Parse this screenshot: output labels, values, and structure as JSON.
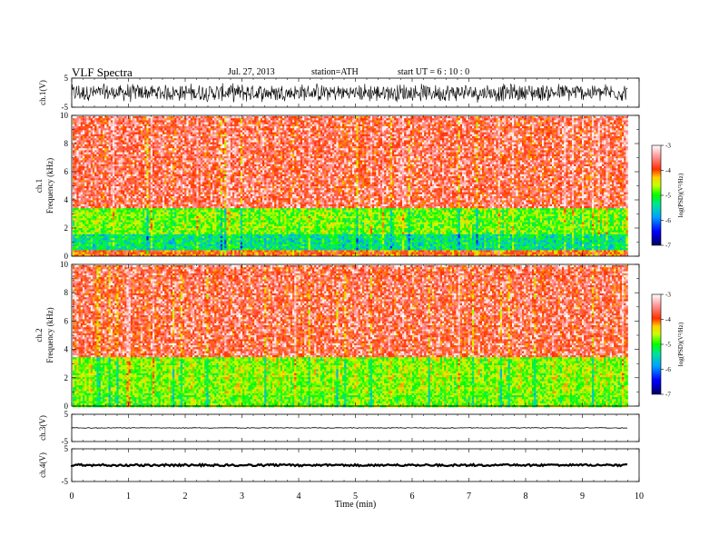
{
  "header": {
    "title": "VLF  Spectra",
    "date": "Jul.  27, 2013",
    "station": "station=ATH",
    "start": "start  UT  =   6  : 10 : 0"
  },
  "chart_data": [
    {
      "type": "line",
      "panel": "ch1-waveform",
      "ylabel": "ch.1(V)",
      "ylim": [
        -5,
        5
      ],
      "yticks": [
        "5",
        "-5"
      ],
      "xlim": [
        0,
        10
      ],
      "amplitude_range": [
        -3.5,
        3.5
      ],
      "data_end_min": 9.8
    },
    {
      "type": "heatmap",
      "panel": "ch1-spectrogram",
      "ylabel": [
        "ch.1",
        "Frequency  (kHz)"
      ],
      "ylim": [
        0,
        10
      ],
      "yticks": [
        "0",
        "2",
        "4",
        "6",
        "8",
        "10"
      ],
      "xlim": [
        0,
        10
      ],
      "data_end_min": 9.8,
      "colorbar": {
        "label": "log(PSD)(V²/Hz)",
        "range": [
          -7,
          -3
        ],
        "ticks": [
          "-3",
          "-4",
          "-5",
          "-6",
          "-7"
        ]
      },
      "bands": [
        {
          "freq_khz": [
            0,
            0.5
          ],
          "logpsd": -4.2
        },
        {
          "freq_khz": [
            0.5,
            1.7
          ],
          "logpsd": -5.5
        },
        {
          "freq_khz": [
            1.7,
            3.5
          ],
          "logpsd": -5.0
        },
        {
          "freq_khz": [
            3.5,
            10
          ],
          "logpsd": -3.9
        }
      ]
    },
    {
      "type": "heatmap",
      "panel": "ch2-spectrogram",
      "ylabel": [
        "ch.2",
        "Frequency  (kHz)"
      ],
      "ylim": [
        0,
        10
      ],
      "yticks": [
        "0",
        "2",
        "4",
        "6",
        "8",
        "10"
      ],
      "xlim": [
        0,
        10
      ],
      "data_end_min": 9.8,
      "colorbar": {
        "label": "log(PSD)(V²/Hz)",
        "range": [
          -7,
          -3
        ],
        "ticks": [
          "-3",
          "-4",
          "-5",
          "-6",
          "-7"
        ]
      },
      "bands": [
        {
          "freq_khz": [
            0,
            1.0
          ],
          "logpsd": -5.0
        },
        {
          "freq_khz": [
            1.0,
            3.5
          ],
          "logpsd": -4.9
        },
        {
          "freq_khz": [
            3.5,
            10
          ],
          "logpsd": -3.9
        }
      ]
    },
    {
      "type": "line",
      "panel": "ch3-waveform",
      "ylabel": "ch.3(V)",
      "ylim": [
        -5,
        5
      ],
      "yticks": [
        "5",
        "-5"
      ],
      "xlim": [
        0,
        10
      ],
      "baseline_v": 0,
      "data_end_min": 9.8
    },
    {
      "type": "line",
      "panel": "ch4-waveform",
      "ylabel": "ch.4(V)",
      "ylim": [
        -5,
        5
      ],
      "yticks": [
        "5",
        "-5"
      ],
      "xlim": [
        0,
        10
      ],
      "baseline_v": 0,
      "data_end_min": 9.8
    }
  ],
  "x_axis": {
    "label": "Time  (min)",
    "ticks": [
      "0",
      "1",
      "2",
      "3",
      "4",
      "5",
      "6",
      "7",
      "8",
      "9",
      "10"
    ]
  }
}
